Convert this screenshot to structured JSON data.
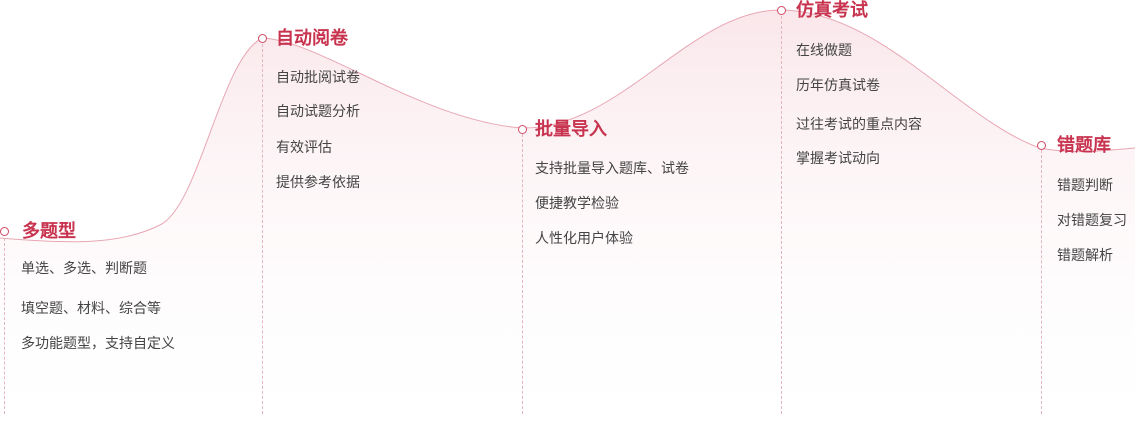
{
  "colors": {
    "accent": "#c8344f",
    "curve": "#e8a7b4",
    "fill_top": "#f9e4e8",
    "text": "#444444"
  },
  "stages": [
    {
      "title": "多题型",
      "items": [
        "单选、多选、判断题",
        "填空题、材料、综合等",
        "多功能题型，支持自定义"
      ]
    },
    {
      "title": "自动阅卷",
      "items": [
        "自动批阅试卷",
        "自动试题分析",
        "有效评估",
        "提供参考依据"
      ]
    },
    {
      "title": "批量导入",
      "items": [
        "支持批量导入题库、试卷",
        "便捷教学检验",
        "人性化用户体验"
      ]
    },
    {
      "title": "仿真考试",
      "items": [
        "在线做题",
        "历年仿真试卷",
        "过往考试的重点内容",
        "掌握考试动向"
      ]
    },
    {
      "title": "错题库",
      "items": [
        "错题判断",
        "对错题复习",
        "错题解析"
      ]
    }
  ]
}
